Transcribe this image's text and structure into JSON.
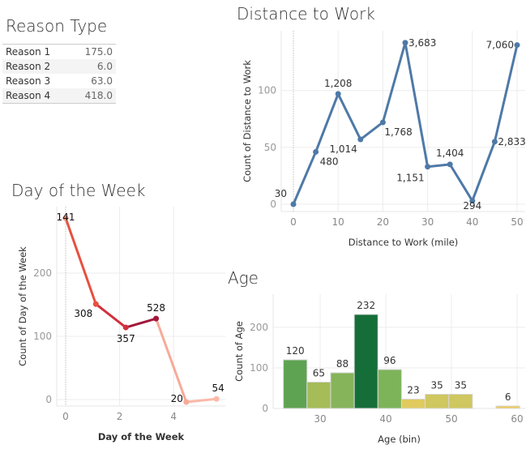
{
  "reason_table": {
    "title": "Reason Type",
    "rows": [
      {
        "label": "Reason 1",
        "value": "175.0"
      },
      {
        "label": "Reason 2",
        "value": "6.0"
      },
      {
        "label": "Reason 3",
        "value": "63.0"
      },
      {
        "label": "Reason 4",
        "value": "418.0"
      }
    ]
  },
  "chart_data": [
    {
      "type": "line",
      "title": "Distance to Work",
      "xlabel": "Distance to Work (mile)",
      "ylabel": "Count of Distance to Work",
      "x": [
        0,
        5,
        10,
        15,
        20,
        25,
        30,
        35,
        40,
        45,
        50
      ],
      "y": [
        0,
        46,
        97,
        57,
        72,
        142,
        33,
        35,
        3,
        55,
        140
      ],
      "labels": [
        "30",
        "480",
        "1,208",
        "1,014",
        "1,768",
        "3,683",
        "1,151",
        "1,404",
        "294",
        "2,833",
        "7,060"
      ],
      "xticks": [
        0,
        10,
        20,
        30,
        40,
        50
      ],
      "yticks": [
        0,
        50,
        100
      ],
      "color": "#4e79a7",
      "grid": true
    },
    {
      "type": "line",
      "title": "Day of the Week",
      "xlabel": "Day of the Week",
      "ylabel": "Count of Day of the Week",
      "x": [
        0,
        1.12,
        2.23,
        3.35,
        4.47,
        5.59
      ],
      "y": [
        287,
        151,
        114,
        128,
        -4,
        1
      ],
      "labels": [
        "141",
        "308",
        "357",
        "528",
        "20",
        "54"
      ],
      "point_colors": [
        "#f58a70",
        "#e8503f",
        "#d32f3c",
        "#a3173a",
        "#f8aa98",
        "#fbb9a8"
      ],
      "xticks": [
        0,
        2,
        4
      ],
      "yticks": [
        0,
        100,
        200
      ],
      "grid": true
    },
    {
      "type": "bar",
      "title": "Age",
      "xlabel": "Age (bin)",
      "ylabel": "Count of Age",
      "bin_starts": [
        24.4,
        28,
        31.6,
        35.2,
        38.8,
        42.4,
        46,
        49.6,
        53.2,
        56.8
      ],
      "bin_width": 3.6,
      "values": [
        120,
        65,
        88,
        232,
        96,
        23,
        35,
        35,
        0,
        6
      ],
      "labels": [
        "120",
        "65",
        "88",
        "232",
        "96",
        "23",
        "35",
        "35",
        "",
        "6"
      ],
      "colors": [
        "#5ea352",
        "#a5bc58",
        "#86b45a",
        "#156e38",
        "#7db45a",
        "#e1cb5e",
        "#cfc75f",
        "#cfc75f",
        "#cfc75f",
        "#edca5a"
      ],
      "xticks": [
        30,
        40,
        50,
        60
      ],
      "yticks": [
        0,
        100,
        200
      ],
      "grid": true
    }
  ]
}
